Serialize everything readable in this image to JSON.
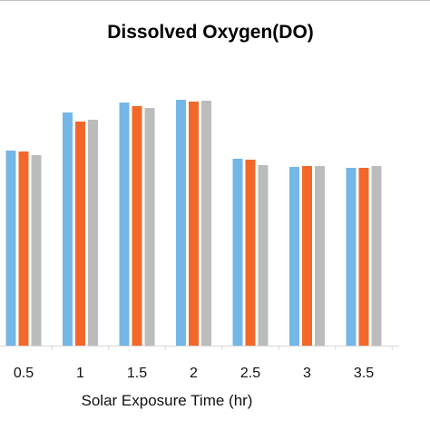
{
  "chart_data": {
    "type": "bar",
    "title": "Dissolved Oxygen(DO)",
    "xlabel": "Solar Exposure Time (hr)",
    "ylabel": "",
    "categories": [
      "0.5",
      "1",
      "1.5",
      "2",
      "2.5",
      "3",
      "3.5"
    ],
    "series": [
      {
        "values": [
          215,
          257,
          268,
          271,
          206,
          197,
          196
        ]
      },
      {
        "values": [
          214,
          247,
          264,
          269,
          205,
          198,
          196
        ]
      },
      {
        "values": [
          210,
          249,
          262,
          270,
          199,
          198,
          198
        ]
      }
    ],
    "ylim": [
      0,
      300
    ],
    "grid": false,
    "legend": "none",
    "colors": [
      "#74B7E7",
      "#F2682A",
      "#BBBDBD"
    ]
  }
}
